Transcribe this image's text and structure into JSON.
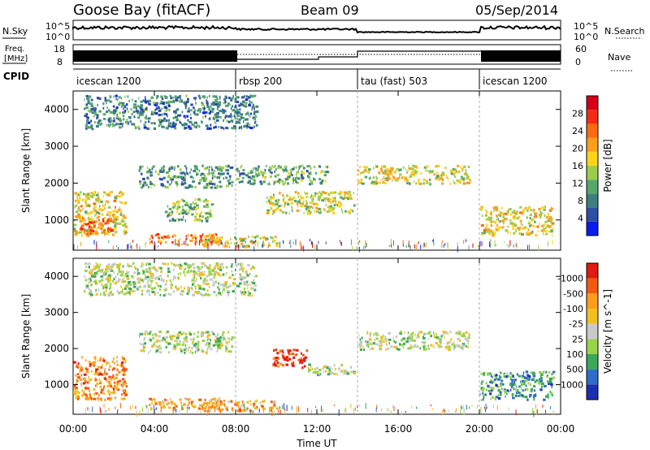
{
  "header": {
    "station": "Goose Bay (fitACF)",
    "beam": "Beam 09",
    "date": "05/Sep/2014"
  },
  "summary_panels": {
    "nsky_label": "N.Sky",
    "nsky_ticks": [
      "10^5",
      "10^0"
    ],
    "nsearch_label": "N.Search",
    "nsearch_ticks": [
      "10^5",
      "10^0"
    ],
    "freq_label": "Freq.",
    "freq_unit": "[MHz]",
    "freq_ticks": [
      "18",
      "8"
    ],
    "nave_label": "Nave",
    "nave_ticks": [
      "60",
      "0"
    ],
    "cpid_label": "CPID"
  },
  "chart_data": [
    {
      "type": "table",
      "name": "cpid",
      "segments": [
        {
          "label": "icescan 1200",
          "start": 0,
          "end": 8
        },
        {
          "label": "rbsp 200",
          "start": 8,
          "end": 14
        },
        {
          "label": "tau (fast) 503",
          "start": 14,
          "end": 20
        },
        {
          "label": "icescan 1200",
          "start": 20,
          "end": 24
        }
      ]
    },
    {
      "type": "heatmap",
      "ylabel": "Slant Range [km]",
      "xlim": [
        0,
        24
      ],
      "ylim": [
        180,
        4500
      ],
      "yticks": [
        1000,
        2000,
        3000,
        4000
      ],
      "colorbar": {
        "label": "Power [dB]",
        "ticks": [
          "4",
          "8",
          "12",
          "16",
          "20",
          "24",
          "28"
        ],
        "colors": [
          "#0a1cf0",
          "#2f4fa2",
          "#3d7f7f",
          "#55a86a",
          "#9ccd4a",
          "#ffd21c",
          "#ff9d1a",
          "#ff6a10",
          "#f52a15",
          "#d4001a"
        ]
      },
      "echo_regions": [
        {
          "t0": 0.0,
          "t1": 2.6,
          "r0": 600,
          "r1": 1800,
          "level": 0.55
        },
        {
          "t0": 0.3,
          "t1": 2.0,
          "r0": 650,
          "r1": 1100,
          "level": 0.75
        },
        {
          "t0": 3.2,
          "t1": 7.8,
          "r0": 1900,
          "r1": 2500,
          "level": 0.3
        },
        {
          "t0": 4.5,
          "t1": 6.8,
          "r0": 1000,
          "r1": 1600,
          "level": 0.4
        },
        {
          "t0": 3.7,
          "t1": 7.2,
          "r0": 350,
          "r1": 650,
          "level": 0.72
        },
        {
          "t0": 6.3,
          "t1": 10.0,
          "r0": 300,
          "r1": 600,
          "level": 0.5
        },
        {
          "t0": 8.0,
          "t1": 12.5,
          "r0": 2000,
          "r1": 2500,
          "level": 0.35
        },
        {
          "t0": 9.5,
          "t1": 13.8,
          "r0": 1200,
          "r1": 1800,
          "level": 0.5
        },
        {
          "t0": 14.0,
          "t1": 19.5,
          "r0": 2000,
          "r1": 2500,
          "level": 0.52
        },
        {
          "t0": 20.0,
          "t1": 23.6,
          "r0": 600,
          "r1": 1400,
          "level": 0.55
        },
        {
          "t0": 0.5,
          "t1": 9.0,
          "r0": 3500,
          "r1": 4400,
          "level": 0.25
        }
      ],
      "xlabel": ""
    },
    {
      "type": "heatmap",
      "ylabel": "Slant Range [km]",
      "xlabel": "Time UT",
      "xlim": [
        0,
        24
      ],
      "ylim": [
        180,
        4500
      ],
      "xticks": [
        "00:00",
        "04:00",
        "08:00",
        "12:00",
        "16:00",
        "20:00",
        "00:00"
      ],
      "yticks": [
        1000,
        2000,
        3000,
        4000
      ],
      "colorbar": {
        "label": "Velocity [m s^-1]",
        "ticks": [
          "1000",
          "500",
          "100",
          "25",
          "-25",
          "-100",
          "-500",
          "-1000"
        ],
        "colors": [
          "#1c2fb0",
          "#2e6cc8",
          "#3aa85a",
          "#9ad34a",
          "#c9c9c9",
          "#f0c020",
          "#ff9d1a",
          "#f25a10",
          "#e01a10"
        ]
      },
      "echo_regions": [
        {
          "t0": 0.0,
          "t1": 2.6,
          "r0": 600,
          "r1": 1800,
          "level": 0.75
        },
        {
          "t0": 3.2,
          "t1": 7.8,
          "r0": 1900,
          "r1": 2500,
          "level": 0.45
        },
        {
          "t0": 3.7,
          "t1": 7.2,
          "r0": 350,
          "r1": 650,
          "level": 0.7
        },
        {
          "t0": 6.3,
          "t1": 10.0,
          "r0": 300,
          "r1": 600,
          "level": 0.68
        },
        {
          "t0": 9.8,
          "t1": 11.5,
          "r0": 1500,
          "r1": 2000,
          "level": 0.9
        },
        {
          "t0": 11.5,
          "t1": 13.8,
          "r0": 1300,
          "r1": 1600,
          "level": 0.45
        },
        {
          "t0": 14.0,
          "t1": 19.5,
          "r0": 2000,
          "r1": 2500,
          "level": 0.45
        },
        {
          "t0": 20.0,
          "t1": 23.6,
          "r0": 600,
          "r1": 1400,
          "level": 0.25
        },
        {
          "t0": 0.5,
          "t1": 9.0,
          "r0": 3500,
          "r1": 4400,
          "level": 0.45
        }
      ]
    }
  ]
}
